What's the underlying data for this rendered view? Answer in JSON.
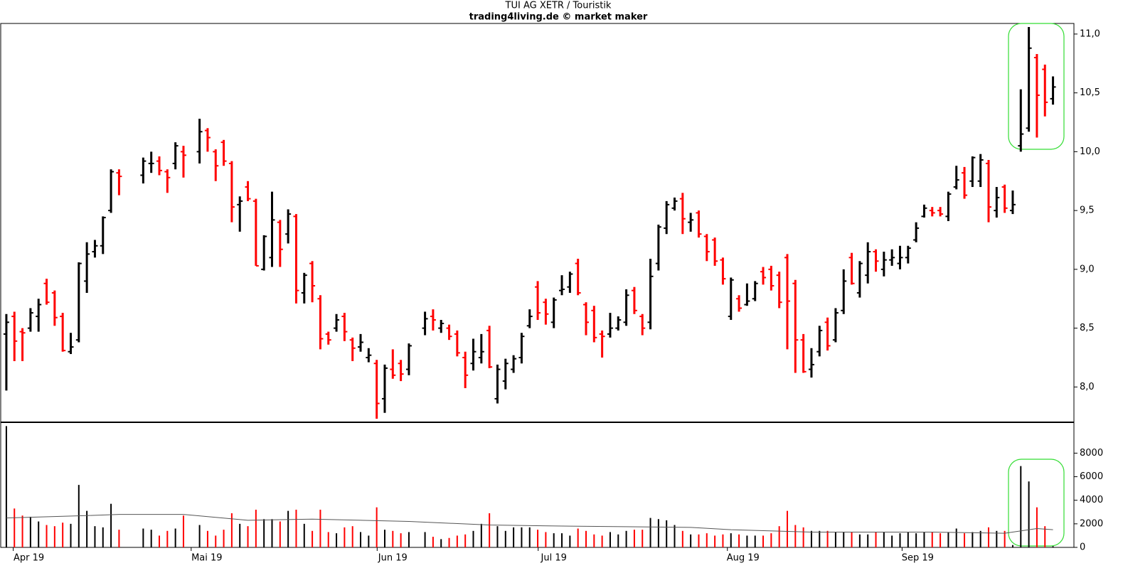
{
  "chart_data": [
    {
      "type": "ohlc",
      "title": "TUI AG XETR / Touristik",
      "subtitle": "trading4living.de © market maker",
      "up_color": "#000000",
      "down_color": "#ff0000",
      "x": [
        0,
        1,
        2,
        3,
        4,
        5,
        6,
        7,
        8,
        9,
        10,
        11,
        12,
        13,
        14,
        17,
        18,
        19,
        20,
        21,
        22,
        24,
        25,
        26,
        27,
        28,
        29,
        30,
        31,
        32,
        33,
        34,
        35,
        36,
        37,
        38,
        39,
        40,
        41,
        42,
        43,
        44,
        45,
        46,
        47,
        48,
        49,
        50,
        52,
        53,
        54,
        55,
        56,
        57,
        58,
        59,
        60,
        61,
        62,
        63,
        64,
        65,
        66,
        67,
        68,
        69,
        70,
        71,
        72,
        73,
        74,
        75,
        76,
        77,
        78,
        79,
        80,
        81,
        82,
        83,
        84,
        85,
        86,
        87,
        88,
        89,
        90,
        91,
        92,
        93,
        94,
        95,
        96,
        97,
        98,
        99,
        100,
        101,
        102,
        103,
        104,
        105,
        106,
        107,
        108,
        109,
        110,
        111,
        112,
        113,
        114,
        115,
        116,
        117,
        118,
        119,
        120,
        121,
        122,
        123,
        124,
        125,
        126,
        127,
        128,
        129,
        130
      ],
      "open": [
        8.45,
        8.6,
        8.47,
        8.5,
        8.6,
        8.88,
        8.8,
        8.6,
        8.3,
        8.4,
        8.9,
        9.15,
        9.2,
        9.5,
        9.82,
        9.8,
        9.9,
        9.92,
        9.83,
        9.9,
        10.0,
        10.0,
        10.18,
        10.0,
        10.08,
        9.9,
        9.55,
        9.7,
        9.58,
        9.0,
        9.1,
        9.4,
        9.3,
        9.45,
        8.8,
        9.05,
        8.75,
        8.45,
        8.5,
        8.6,
        8.4,
        8.34,
        8.25,
        8.2,
        7.9,
        8.15,
        8.2,
        8.15,
        8.5,
        8.6,
        8.5,
        8.5,
        8.45,
        8.25,
        8.2,
        8.25,
        8.48,
        7.9,
        8.05,
        8.15,
        8.25,
        8.52,
        8.85,
        8.72,
        8.55,
        8.82,
        8.85,
        9.05,
        8.7,
        8.65,
        8.45,
        8.45,
        8.5,
        8.55,
        8.82,
        8.6,
        8.55,
        9.05,
        9.35,
        9.52,
        9.6,
        9.4,
        9.48,
        9.28,
        9.25,
        9.08,
        8.6,
        8.75,
        8.7,
        8.75,
        8.98,
        9.0,
        8.95,
        9.1,
        8.88,
        8.4,
        8.15,
        8.3,
        8.55,
        8.4,
        8.65,
        9.1,
        8.8,
        8.95,
        9.15,
        9.0,
        9.08,
        9.05,
        9.1,
        9.25,
        9.45,
        9.5,
        9.5,
        9.45,
        9.7,
        9.82,
        9.75,
        9.75,
        9.9,
        9.5,
        9.7,
        9.5,
        10.05,
        10.2,
        10.8,
        10.7,
        10.45
      ],
      "high": [
        8.62,
        8.64,
        8.5,
        8.67,
        8.75,
        8.92,
        8.82,
        8.63,
        8.46,
        9.06,
        9.23,
        9.25,
        9.45,
        9.85,
        9.85,
        9.95,
        10.0,
        9.96,
        9.85,
        10.08,
        10.05,
        10.28,
        10.2,
        10.02,
        10.1,
        9.92,
        9.62,
        9.75,
        9.6,
        9.29,
        9.66,
        9.42,
        9.51,
        9.47,
        8.97,
        9.07,
        8.78,
        8.47,
        8.62,
        8.63,
        8.42,
        8.45,
        8.33,
        8.23,
        8.19,
        8.32,
        8.23,
        8.37,
        8.64,
        8.66,
        8.57,
        8.53,
        8.48,
        8.3,
        8.41,
        8.45,
        8.52,
        8.19,
        8.24,
        8.27,
        8.46,
        8.66,
        8.9,
        8.75,
        8.76,
        8.95,
        8.98,
        9.09,
        8.72,
        8.69,
        8.48,
        8.63,
        8.6,
        8.83,
        8.85,
        8.62,
        9.09,
        9.38,
        9.58,
        9.61,
        9.65,
        9.48,
        9.5,
        9.3,
        9.27,
        9.1,
        8.93,
        8.78,
        8.88,
        8.9,
        9.02,
        9.03,
        8.98,
        9.13,
        8.91,
        8.45,
        8.33,
        8.52,
        8.59,
        8.67,
        9.0,
        9.14,
        9.07,
        9.23,
        9.17,
        9.15,
        9.17,
        9.2,
        9.2,
        9.4,
        9.55,
        9.53,
        9.53,
        9.66,
        9.88,
        9.87,
        9.96,
        9.98,
        9.93,
        9.7,
        9.72,
        9.67,
        10.53,
        11.06,
        10.83,
        10.74,
        10.64
      ],
      "low": [
        7.97,
        8.22,
        8.22,
        8.47,
        8.47,
        8.7,
        8.52,
        8.3,
        8.28,
        8.38,
        8.8,
        9.1,
        9.13,
        9.48,
        9.63,
        9.73,
        9.82,
        9.8,
        9.65,
        9.85,
        9.78,
        9.9,
        10.0,
        9.75,
        9.88,
        9.4,
        9.32,
        9.58,
        9.03,
        8.99,
        9.02,
        9.02,
        9.22,
        8.71,
        8.71,
        8.72,
        8.32,
        8.36,
        8.47,
        8.39,
        8.22,
        8.3,
        8.21,
        7.73,
        7.78,
        8.07,
        8.05,
        8.1,
        8.44,
        8.48,
        8.46,
        8.4,
        8.26,
        7.99,
        8.14,
        8.2,
        8.16,
        7.86,
        7.98,
        8.12,
        8.2,
        8.5,
        8.57,
        8.53,
        8.5,
        8.78,
        8.8,
        8.78,
        8.44,
        8.38,
        8.25,
        8.42,
        8.48,
        8.52,
        8.62,
        8.44,
        8.49,
        8.99,
        9.3,
        9.5,
        9.3,
        9.32,
        9.27,
        9.07,
        9.03,
        8.87,
        8.57,
        8.64,
        8.69,
        8.73,
        8.87,
        8.82,
        8.67,
        8.32,
        8.12,
        8.12,
        8.08,
        8.26,
        8.31,
        8.38,
        8.62,
        8.87,
        8.76,
        8.88,
        8.98,
        8.94,
        9.03,
        9.0,
        9.05,
        9.23,
        9.44,
        9.45,
        9.45,
        9.41,
        9.68,
        9.6,
        9.7,
        9.7,
        9.4,
        9.44,
        9.48,
        9.47,
        10.0,
        10.17,
        10.12,
        10.3,
        10.4
      ],
      "close": [
        8.55,
        8.39,
        8.46,
        8.63,
        8.7,
        8.72,
        8.59,
        8.31,
        8.34,
        9.05,
        9.13,
        9.2,
        9.44,
        9.83,
        9.79,
        9.92,
        9.9,
        9.84,
        9.78,
        10.05,
        9.97,
        10.17,
        10.12,
        9.88,
        9.92,
        9.53,
        9.58,
        9.6,
        9.03,
        9.28,
        9.42,
        9.17,
        9.47,
        8.82,
        8.95,
        8.86,
        8.41,
        8.4,
        8.57,
        8.47,
        8.33,
        8.38,
        8.27,
        7.86,
        8.16,
        8.1,
        8.11,
        8.35,
        8.58,
        8.57,
        8.54,
        8.43,
        8.29,
        8.1,
        8.3,
        8.3,
        8.17,
        8.15,
        8.2,
        8.24,
        8.43,
        8.6,
        8.63,
        8.62,
        8.74,
        8.83,
        8.96,
        8.8,
        8.55,
        8.42,
        8.43,
        8.5,
        8.57,
        8.78,
        8.65,
        8.5,
        8.94,
        9.36,
        9.55,
        9.58,
        9.43,
        9.42,
        9.3,
        9.15,
        9.07,
        8.92,
        8.91,
        8.67,
        8.73,
        8.88,
        8.93,
        8.86,
        8.72,
        8.73,
        8.4,
        8.13,
        8.19,
        8.48,
        8.35,
        8.63,
        8.9,
        8.88,
        9.05,
        9.15,
        9.07,
        9.08,
        9.1,
        9.1,
        9.18,
        9.35,
        9.52,
        9.48,
        9.47,
        9.64,
        9.76,
        9.63,
        9.95,
        9.93,
        9.53,
        9.61,
        9.52,
        9.55,
        10.15,
        10.88,
        10.48,
        10.42,
        10.55
      ],
      "xlim": [
        -0.7,
        132.6
      ],
      "ylim": [
        7.7,
        11.09
      ],
      "yticks": [
        {
          "value": 8,
          "label": "8,0"
        },
        {
          "value": 8.5,
          "label": "8,5"
        },
        {
          "value": 9,
          "label": "9,0"
        },
        {
          "value": 9.5,
          "label": "9,5"
        },
        {
          "value": 10,
          "label": "10,0"
        },
        {
          "value": 10.5,
          "label": "10,5"
        },
        {
          "value": 11,
          "label": "11,0"
        }
      ]
    },
    {
      "type": "volume",
      "values": [
        10300,
        3300,
        2700,
        2600,
        2200,
        1900,
        1800,
        2100,
        2000,
        5300,
        3100,
        1800,
        1700,
        3700,
        1500,
        1600,
        1500,
        1000,
        1400,
        1600,
        2700,
        1900,
        1400,
        1000,
        1500,
        2900,
        2000,
        1800,
        3200,
        2400,
        2400,
        2200,
        3100,
        3200,
        2000,
        1400,
        3200,
        1300,
        1200,
        1700,
        1800,
        1300,
        1000,
        3400,
        1500,
        1400,
        1200,
        1300,
        1300,
        900,
        700,
        800,
        1000,
        1100,
        1400,
        2000,
        2900,
        1800,
        1400,
        1700,
        1700,
        1700,
        1500,
        1300,
        1200,
        1200,
        1000,
        1600,
        1400,
        1100,
        1000,
        1300,
        1100,
        1400,
        1500,
        1500,
        2500,
        2400,
        2300,
        1900,
        1400,
        1100,
        1100,
        1200,
        1000,
        1100,
        1200,
        1100,
        1000,
        1000,
        1000,
        1200,
        1800,
        3100,
        1900,
        1700,
        1400,
        1400,
        1400,
        1300,
        1300,
        1300,
        1100,
        1100,
        1300,
        1300,
        1000,
        1200,
        1300,
        1200,
        1300,
        1300,
        1200,
        1300,
        1600,
        1200,
        1300,
        1400,
        1700,
        1400,
        1400,
        200,
        6900,
        5600,
        3400,
        1800,
        100
      ],
      "average": {
        "color": "#555555",
        "x": [
          0,
          10,
          14,
          22,
          30,
          38,
          50,
          60,
          70,
          85,
          90,
          100,
          115,
          124,
          128,
          130
        ],
        "values": [
          2500,
          2700,
          2800,
          2800,
          2300,
          2400,
          2200,
          1900,
          1800,
          1700,
          1500,
          1300,
          1300,
          1200,
          1600,
          1500
        ]
      },
      "ylim": [
        0,
        10500
      ],
      "yticks": [
        0,
        2000,
        4000,
        6000,
        8000
      ],
      "xticks": [
        {
          "value": 2.8,
          "label": "Apr 19"
        },
        {
          "value": 24.9,
          "label": "Mai 19"
        },
        {
          "value": 48,
          "label": "Jun 19"
        },
        {
          "value": 68,
          "label": "Jul 19"
        },
        {
          "value": 91.5,
          "label": "Aug 19"
        },
        {
          "value": 113.2,
          "label": "Sep 19"
        }
      ]
    }
  ]
}
